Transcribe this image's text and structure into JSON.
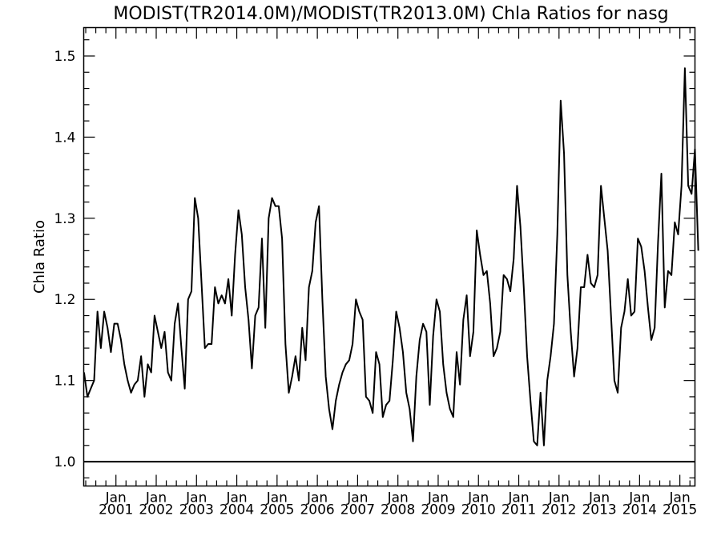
{
  "chart_data": {
    "type": "line",
    "title": "MODIST(TR2014.0M)/MODIST(TR2013.0M)  Chla Ratios for nasg",
    "ylabel": "Chla Ratio",
    "xlabel": "",
    "xlim": [
      2000.2,
      2015.375
    ],
    "ylim": [
      0.97,
      1.535
    ],
    "yticks": [
      1.0,
      1.1,
      1.2,
      1.3,
      1.4,
      1.5
    ],
    "ytick_labels": [
      "1.0",
      "1.1",
      "1.2",
      "1.3",
      "1.4",
      "1.5"
    ],
    "xtick_top": "Jan",
    "xticks": [
      2001,
      2002,
      2003,
      2004,
      2005,
      2006,
      2007,
      2008,
      2009,
      2010,
      2011,
      2012,
      2013,
      2014,
      2015
    ],
    "xtick_labels": [
      "2001",
      "2002",
      "2003",
      "2004",
      "2005",
      "2006",
      "2007",
      "2008",
      "2009",
      "2010",
      "2011",
      "2012",
      "2013",
      "2014",
      "2015"
    ],
    "grid": false,
    "reference_line": {
      "y": 1.0
    },
    "series": [
      {
        "x_start": 2000.2083,
        "x_step": 0.08333,
        "values": [
          1.11,
          1.08,
          1.09,
          1.1,
          1.185,
          1.14,
          1.185,
          1.165,
          1.135,
          1.17,
          1.17,
          1.15,
          1.12,
          1.1,
          1.085,
          1.095,
          1.1,
          1.13,
          1.08,
          1.12,
          1.11,
          1.18,
          1.16,
          1.14,
          1.16,
          1.11,
          1.1,
          1.17,
          1.195,
          1.14,
          1.09,
          1.2,
          1.21,
          1.325,
          1.3,
          1.22,
          1.14,
          1.145,
          1.145,
          1.215,
          1.195,
          1.205,
          1.195,
          1.225,
          1.18,
          1.255,
          1.31,
          1.28,
          1.215,
          1.175,
          1.115,
          1.18,
          1.19,
          1.275,
          1.165,
          1.3,
          1.325,
          1.315,
          1.315,
          1.275,
          1.145,
          1.085,
          1.105,
          1.13,
          1.1,
          1.165,
          1.125,
          1.215,
          1.235,
          1.295,
          1.315,
          1.2,
          1.105,
          1.065,
          1.04,
          1.075,
          1.095,
          1.11,
          1.12,
          1.125,
          1.145,
          1.2,
          1.185,
          1.175,
          1.08,
          1.075,
          1.06,
          1.135,
          1.12,
          1.055,
          1.07,
          1.075,
          1.125,
          1.185,
          1.165,
          1.135,
          1.085,
          1.065,
          1.025,
          1.105,
          1.15,
          1.17,
          1.16,
          1.07,
          1.155,
          1.2,
          1.185,
          1.12,
          1.085,
          1.065,
          1.055,
          1.135,
          1.095,
          1.175,
          1.205,
          1.13,
          1.16,
          1.285,
          1.255,
          1.23,
          1.235,
          1.195,
          1.13,
          1.14,
          1.16,
          1.23,
          1.225,
          1.21,
          1.25,
          1.34,
          1.29,
          1.215,
          1.13,
          1.075,
          1.025,
          1.02,
          1.085,
          1.02,
          1.1,
          1.13,
          1.17,
          1.28,
          1.445,
          1.38,
          1.23,
          1.16,
          1.105,
          1.14,
          1.215,
          1.215,
          1.255,
          1.22,
          1.215,
          1.23,
          1.34,
          1.3,
          1.26,
          1.18,
          1.1,
          1.085,
          1.165,
          1.185,
          1.225,
          1.18,
          1.185,
          1.275,
          1.265,
          1.235,
          1.19,
          1.15,
          1.165,
          1.27,
          1.355,
          1.19,
          1.235,
          1.23,
          1.295,
          1.28,
          1.34,
          1.485,
          1.34,
          1.33,
          1.385,
          1.26
        ]
      }
    ]
  }
}
